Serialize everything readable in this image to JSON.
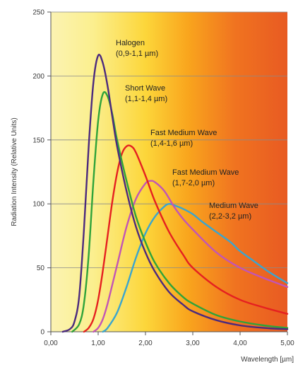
{
  "chart_data": {
    "type": "line",
    "title": "",
    "xlabel": "Wavelength [µm]",
    "ylabel": "Radiation Intensity (Relative Units)",
    "xlim": [
      0,
      5
    ],
    "ylim": [
      0,
      250
    ],
    "x_ticks": [
      0,
      1,
      2,
      3,
      4,
      5
    ],
    "x_tick_labels": [
      "0,00",
      "1,00",
      "2,00",
      "3,00",
      "4,00",
      "5,00"
    ],
    "y_ticks": [
      0,
      50,
      100,
      150,
      200,
      250
    ],
    "y_tick_labels": [
      "0",
      "50",
      "100",
      "150",
      "200",
      "250"
    ],
    "grid": "horizontal",
    "background": "gradient: pale yellow (left) to orange-red (right)",
    "series": [
      {
        "name_lines": [
          "Halogen",
          "(0,9-1,1 µm)"
        ],
        "color": "#4b2a7e",
        "x": [
          0.25,
          0.4,
          0.5,
          0.6,
          0.7,
          0.8,
          0.9,
          1.0,
          1.1,
          1.2,
          1.3,
          1.4,
          1.6,
          1.8,
          2.0,
          2.2,
          2.5,
          2.8,
          3.0,
          3.5,
          4.0,
          4.5,
          5.0
        ],
        "y": [
          0,
          2,
          8,
          28,
          80,
          145,
          195,
          216,
          210,
          192,
          168,
          145,
          110,
          82,
          62,
          47,
          31,
          21,
          16,
          9,
          5,
          3,
          2
        ]
      },
      {
        "name_lines": [
          "Short Wave",
          "(1,1-1,4 µm)"
        ],
        "color": "#2fa33a",
        "x": [
          0.45,
          0.6,
          0.7,
          0.8,
          0.9,
          1.0,
          1.1,
          1.2,
          1.3,
          1.4,
          1.6,
          1.8,
          2.0,
          2.2,
          2.5,
          2.8,
          3.0,
          3.5,
          4.0,
          4.5,
          5.0
        ],
        "y": [
          0,
          6,
          22,
          60,
          118,
          165,
          186,
          184,
          170,
          150,
          118,
          90,
          70,
          54,
          38,
          27,
          22,
          13,
          8,
          5,
          3
        ]
      },
      {
        "name_lines": [
          "Fast Medium Wave",
          "(1,4-1,6 µm)"
        ],
        "color": "#e52020",
        "x": [
          0.7,
          0.8,
          0.9,
          1.0,
          1.1,
          1.2,
          1.3,
          1.4,
          1.5,
          1.6,
          1.7,
          1.8,
          2.0,
          2.2,
          2.5,
          2.8,
          3.0,
          3.5,
          4.0,
          4.5,
          5.0
        ],
        "y": [
          0,
          3,
          10,
          25,
          48,
          75,
          102,
          124,
          139,
          145,
          145,
          140,
          122,
          102,
          78,
          60,
          50,
          35,
          25,
          19,
          14
        ]
      },
      {
        "name_lines": [
          "Fast Medium Wave",
          "(1,7-2,0 µm)"
        ],
        "color": "#c255b5",
        "x": [
          0.9,
          1.0,
          1.1,
          1.2,
          1.4,
          1.6,
          1.8,
          2.0,
          2.1,
          2.2,
          2.4,
          2.6,
          2.8,
          3.0,
          3.5,
          4.0,
          4.5,
          5.0
        ],
        "y": [
          0,
          3,
          10,
          22,
          52,
          82,
          104,
          116,
          118,
          117,
          110,
          98,
          88,
          80,
          62,
          50,
          42,
          35
        ]
      },
      {
        "name_lines": [
          "Medium Wave",
          "(2,2-3,2 µm)"
        ],
        "color": "#3aa5cf",
        "x": [
          1.1,
          1.2,
          1.4,
          1.6,
          1.8,
          2.0,
          2.2,
          2.4,
          2.5,
          2.6,
          2.8,
          3.0,
          3.2,
          3.5,
          3.8,
          4.0,
          4.3,
          4.6,
          5.0
        ],
        "y": [
          0,
          3,
          15,
          35,
          58,
          77,
          90,
          98,
          100,
          99,
          96,
          92,
          86,
          78,
          70,
          63,
          55,
          47,
          38
        ]
      }
    ]
  }
}
